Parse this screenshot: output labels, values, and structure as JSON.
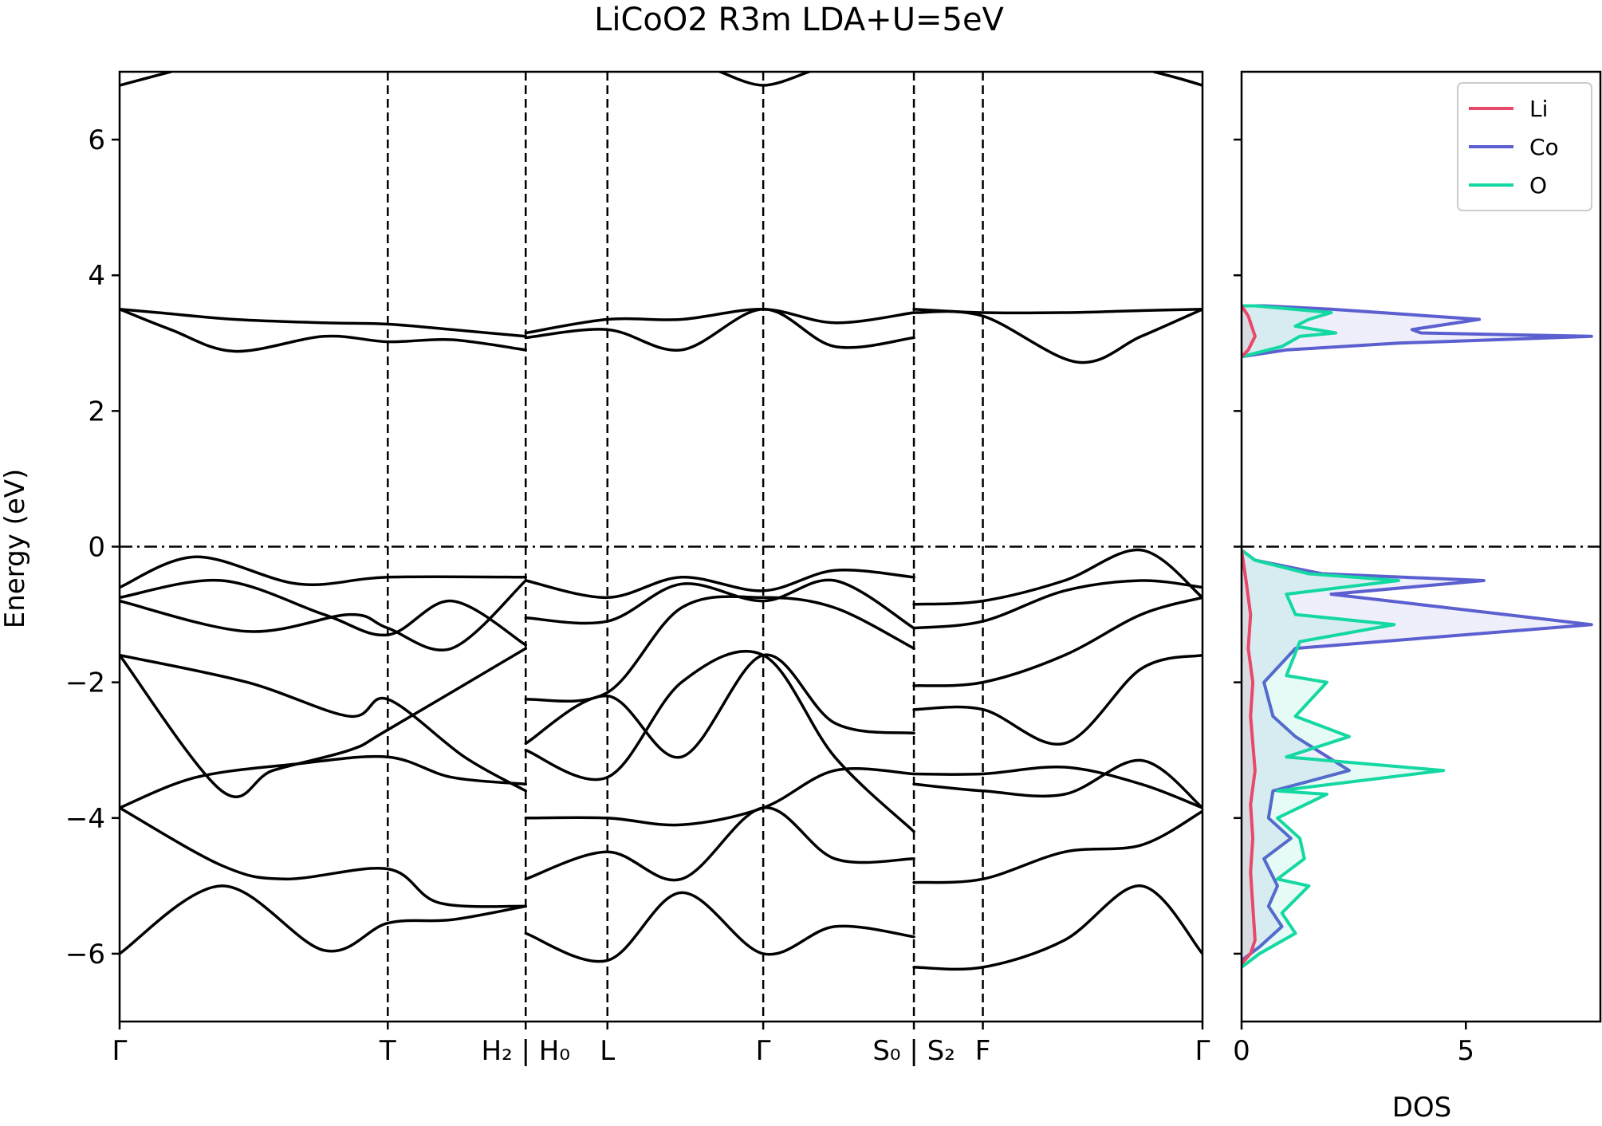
{
  "chart_data": [
    {
      "type": "line",
      "panel": "band structure",
      "title": "LiCoO2 R3m LDA+U=5eV",
      "xlabel": "",
      "ylabel": "Energy (eV)",
      "ylim": [
        -7,
        7
      ],
      "yticks": [
        -6,
        -4,
        -2,
        0,
        2,
        4,
        6
      ],
      "ytick_labels": [
        "−6",
        "−4",
        "−2",
        "0",
        "2",
        "4",
        "6"
      ],
      "kpath_positions": [
        0,
        1.05,
        1.59,
        1.91,
        2.52,
        3.11,
        3.38,
        4.24
      ],
      "kpath_labels": [
        "Γ",
        "T",
        "H₂ | H₀",
        "L",
        "Γ",
        "S₀ | S₂",
        "F",
        "Γ"
      ],
      "fermi_level": 0,
      "grid": false,
      "series": [
        {
          "x": [
            0,
            0.15,
            0.45,
            0.8,
            1.05,
            1.3,
            1.59
          ],
          "y": [
            3.5,
            3.45,
            3.35,
            3.3,
            3.28,
            3.2,
            3.1
          ]
        },
        {
          "x": [
            0,
            0.2,
            0.45,
            0.8,
            1.05,
            1.3,
            1.59
          ],
          "y": [
            3.5,
            3.2,
            2.88,
            3.1,
            3.02,
            3.05,
            2.9
          ]
        },
        {
          "x": [
            1.59,
            1.91,
            2.2,
            2.52,
            2.8,
            3.11
          ],
          "y": [
            3.15,
            3.35,
            3.35,
            3.5,
            3.3,
            3.45
          ]
        },
        {
          "x": [
            1.59,
            1.91,
            2.2,
            2.52,
            2.8,
            3.11
          ],
          "y": [
            3.08,
            3.2,
            2.9,
            3.5,
            2.95,
            3.08
          ]
        },
        {
          "x": [
            3.11,
            3.38,
            3.7,
            4.0,
            4.24
          ],
          "y": [
            3.5,
            3.45,
            3.45,
            3.48,
            3.5
          ]
        },
        {
          "x": [
            3.11,
            3.38,
            3.75,
            4.0,
            4.24
          ],
          "y": [
            3.45,
            3.4,
            2.72,
            3.1,
            3.5
          ]
        },
        {
          "x": [
            0,
            0.3,
            0.7,
            1.05,
            1.59
          ],
          "y": [
            -0.6,
            -0.15,
            -0.55,
            -0.45,
            -0.45
          ]
        },
        {
          "x": [
            0,
            0.4,
            0.8,
            1.05,
            1.3,
            1.59
          ],
          "y": [
            -0.75,
            -0.5,
            -1.0,
            -1.3,
            -0.8,
            -1.45
          ]
        },
        {
          "x": [
            0,
            0.5,
            0.9,
            1.05,
            1.3,
            1.59
          ],
          "y": [
            -0.8,
            -1.25,
            -1.0,
            -1.2,
            -1.5,
            -0.5
          ]
        },
        {
          "x": [
            0,
            0.5,
            0.9,
            1.05,
            1.35,
            1.59
          ],
          "y": [
            -1.6,
            -2.0,
            -2.5,
            -2.25,
            -3.1,
            -3.6
          ]
        },
        {
          "x": [
            0,
            0.4,
            0.6,
            0.9,
            1.05,
            1.59
          ],
          "y": [
            -1.6,
            -3.6,
            -3.3,
            -3.0,
            -2.7,
            -1.5
          ]
        },
        {
          "x": [
            0,
            0.3,
            0.7,
            1.05,
            1.3,
            1.59
          ],
          "y": [
            -3.85,
            -3.4,
            -3.2,
            -3.1,
            -3.4,
            -3.5
          ]
        },
        {
          "x": [
            0,
            0.4,
            0.65,
            1.05,
            1.25,
            1.59
          ],
          "y": [
            -3.85,
            -4.7,
            -4.9,
            -4.75,
            -5.25,
            -5.3
          ]
        },
        {
          "x": [
            0,
            0.4,
            0.8,
            1.05,
            1.3,
            1.59
          ],
          "y": [
            -6.0,
            -5.0,
            -5.95,
            -5.55,
            -5.5,
            -5.3
          ]
        },
        {
          "x": [
            1.59,
            1.91,
            2.2,
            2.52,
            2.8,
            3.11
          ],
          "y": [
            -0.5,
            -0.75,
            -0.45,
            -0.65,
            -0.35,
            -0.45
          ]
        },
        {
          "x": [
            1.59,
            1.91,
            2.2,
            2.52,
            2.8,
            3.11
          ],
          "y": [
            -1.05,
            -1.1,
            -0.55,
            -0.8,
            -0.5,
            -1.2
          ]
        },
        {
          "x": [
            1.59,
            1.91,
            2.2,
            2.52,
            2.8,
            3.11
          ],
          "y": [
            -2.25,
            -2.15,
            -0.9,
            -0.75,
            -0.9,
            -1.5
          ]
        },
        {
          "x": [
            1.59,
            1.91,
            2.2,
            2.52,
            2.8,
            3.11
          ],
          "y": [
            -2.9,
            -2.2,
            -3.1,
            -1.6,
            -2.6,
            -2.75
          ]
        },
        {
          "x": [
            1.59,
            1.91,
            2.2,
            2.52,
            2.8,
            3.11
          ],
          "y": [
            -3.0,
            -3.4,
            -2.0,
            -1.6,
            -3.1,
            -4.2
          ]
        },
        {
          "x": [
            1.59,
            1.91,
            2.2,
            2.52,
            2.8,
            3.11
          ],
          "y": [
            -4.0,
            -4.0,
            -4.1,
            -3.85,
            -3.3,
            -3.35
          ]
        },
        {
          "x": [
            1.59,
            1.91,
            2.2,
            2.52,
            2.8,
            3.11
          ],
          "y": [
            -4.9,
            -4.5,
            -4.9,
            -3.85,
            -4.6,
            -4.6
          ]
        },
        {
          "x": [
            1.59,
            1.91,
            2.2,
            2.52,
            2.8,
            3.11
          ],
          "y": [
            -5.7,
            -6.1,
            -5.1,
            -6.0,
            -5.6,
            -5.75
          ]
        },
        {
          "x": [
            3.11,
            3.38,
            3.7,
            4.0,
            4.24
          ],
          "y": [
            -0.85,
            -0.8,
            -0.5,
            -0.05,
            -0.75
          ]
        },
        {
          "x": [
            3.11,
            3.38,
            3.7,
            4.0,
            4.24
          ],
          "y": [
            -1.2,
            -1.1,
            -0.65,
            -0.5,
            -0.6
          ]
        },
        {
          "x": [
            3.11,
            3.38,
            3.7,
            4.0,
            4.24
          ],
          "y": [
            -2.05,
            -2.0,
            -1.6,
            -1.0,
            -0.75
          ]
        },
        {
          "x": [
            3.11,
            3.38,
            3.7,
            4.0,
            4.24
          ],
          "y": [
            -2.4,
            -2.4,
            -2.9,
            -1.8,
            -1.6
          ]
        },
        {
          "x": [
            3.11,
            3.38,
            3.7,
            4.0,
            4.24
          ],
          "y": [
            -3.35,
            -3.35,
            -3.25,
            -3.5,
            -3.85
          ]
        },
        {
          "x": [
            3.11,
            3.38,
            3.7,
            4.0,
            4.24
          ],
          "y": [
            -3.5,
            -3.6,
            -3.65,
            -3.15,
            -3.85
          ]
        },
        {
          "x": [
            3.11,
            3.38,
            3.7,
            4.0,
            4.24
          ],
          "y": [
            -4.95,
            -4.9,
            -4.5,
            -4.4,
            -3.9
          ]
        },
        {
          "x": [
            3.11,
            3.38,
            3.7,
            4.0,
            4.24
          ],
          "y": [
            -6.2,
            -6.2,
            -5.8,
            -5.0,
            -6.0
          ]
        },
        {
          "x": [
            0,
            0.1,
            0.2
          ],
          "y": [
            6.8,
            6.9,
            7.0
          ]
        },
        {
          "x": [
            2.35,
            2.52,
            2.7
          ],
          "y": [
            7.0,
            6.8,
            7.0
          ]
        },
        {
          "x": [
            4.05,
            4.15,
            4.24
          ],
          "y": [
            7.0,
            6.9,
            6.8
          ]
        }
      ]
    },
    {
      "type": "area",
      "panel": "density of states",
      "xlabel": "DOS",
      "xlim": [
        0,
        8
      ],
      "ylim": [
        -7,
        7
      ],
      "xticks": [
        0,
        5
      ],
      "xtick_labels": [
        "0",
        "5"
      ],
      "legend": "top-right",
      "series": [
        {
          "name": "Li",
          "color": "#e8486a",
          "x": [
            0,
            0.15,
            0.3,
            0.15,
            0,
            0,
            0.1,
            0.2,
            0.15,
            0.25,
            0.2,
            0.3,
            0.2,
            0.25,
            0.2,
            0.25,
            0.3,
            0.2,
            0
          ],
          "y": [
            2.8,
            2.9,
            3.1,
            3.4,
            3.55,
            -0.05,
            -0.5,
            -1.0,
            -1.5,
            -2.0,
            -2.5,
            -3.3,
            -3.8,
            -4.3,
            -4.8,
            -5.3,
            -5.8,
            -6.0,
            -6.15
          ]
        },
        {
          "name": "Co",
          "color": "#5b5fcf",
          "x": [
            0,
            1.0,
            3.5,
            7.8,
            4.0,
            3.8,
            5.3,
            2.0,
            0.5,
            0,
            0,
            0.3,
            1.8,
            5.4,
            2.0,
            7.8,
            1.2,
            0.5,
            0.7,
            1.2,
            2.4,
            0.7,
            0.6,
            1.1,
            0.5,
            0.8,
            0.6,
            0.9,
            0.4,
            0
          ],
          "y": [
            2.8,
            2.9,
            3.0,
            3.1,
            3.15,
            3.2,
            3.35,
            3.5,
            3.55,
            3.55,
            -0.05,
            -0.2,
            -0.4,
            -0.5,
            -0.7,
            -1.15,
            -1.5,
            -2.0,
            -2.5,
            -2.8,
            -3.3,
            -3.6,
            -4.0,
            -4.3,
            -4.6,
            -5.0,
            -5.3,
            -5.6,
            -5.9,
            -6.1
          ]
        },
        {
          "name": "O",
          "color": "#14d8a2",
          "x": [
            0,
            0.9,
            1.3,
            2.1,
            1.2,
            1.5,
            2.0,
            0.3,
            0,
            0,
            0.3,
            1.5,
            3.5,
            1.0,
            1.2,
            3.4,
            1.3,
            1.0,
            1.9,
            1.2,
            2.4,
            1.0,
            4.5,
            0.8,
            1.9,
            0.8,
            1.3,
            1.4,
            0.8,
            1.5,
            0.9,
            1.2,
            0.4,
            0
          ],
          "y": [
            2.8,
            2.95,
            3.1,
            3.15,
            3.25,
            3.35,
            3.45,
            3.55,
            3.55,
            -0.05,
            -0.2,
            -0.4,
            -0.5,
            -0.7,
            -1.0,
            -1.15,
            -1.4,
            -1.9,
            -2.0,
            -2.5,
            -2.8,
            -3.1,
            -3.3,
            -3.6,
            -3.65,
            -4.0,
            -4.3,
            -4.6,
            -4.9,
            -5.0,
            -5.4,
            -5.7,
            -6.0,
            -6.2
          ]
        }
      ]
    }
  ]
}
